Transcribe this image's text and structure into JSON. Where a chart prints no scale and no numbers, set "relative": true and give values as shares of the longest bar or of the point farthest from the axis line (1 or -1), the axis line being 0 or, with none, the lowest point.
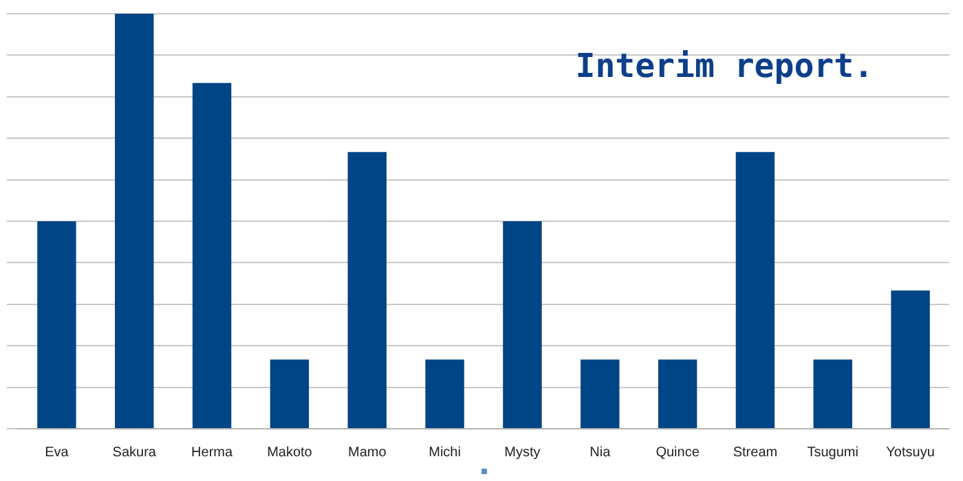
{
  "chart_data": {
    "type": "bar",
    "categories": [
      "Eva",
      "Sakura",
      "Herma",
      "Makoto",
      "Mamo",
      "Michi",
      "Mysty",
      "Nia",
      "Quince",
      "Stream",
      "Tsugumi",
      "Yotsuyu"
    ],
    "values": [
      0.5,
      1,
      0.833,
      0.167,
      0.667,
      0.167,
      0.5,
      0.167,
      0.167,
      0.667,
      0.167,
      0.333
    ],
    "color": "#004586",
    "relative": true,
    "grid": "y",
    "annotations": [
      "Interim report."
    ]
  }
}
